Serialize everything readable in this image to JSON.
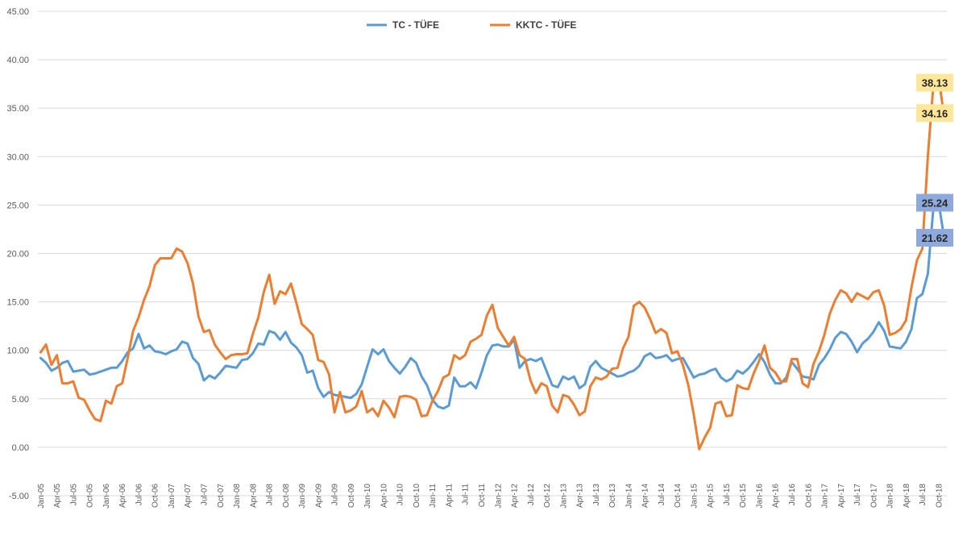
{
  "chart_data": {
    "type": "line",
    "title": "",
    "xlabel": "",
    "ylabel": "",
    "ylim": [
      -5,
      45
    ],
    "y_ticks": [
      "-5.00",
      "0.00",
      "5.00",
      "10.00",
      "15.00",
      "20.00",
      "25.00",
      "30.00",
      "35.00",
      "40.00",
      "45.00"
    ],
    "grid": "horizontal",
    "legend_position": "top",
    "x_tick_labels": [
      "Jan-05",
      "Apr-05",
      "Jul-05",
      "Oct-05",
      "Jan-06",
      "Apr-06",
      "Jul-06",
      "Oct-06",
      "Jan-07",
      "Apr-07",
      "Jul-07",
      "Oct-07",
      "Jan-08",
      "Apr-08",
      "Jul-08",
      "Oct-08",
      "Jan-09",
      "Apr-09",
      "Jul-09",
      "Oct-09",
      "Jan-10",
      "Apr-10",
      "Jul-10",
      "Oct-10",
      "Jan-11",
      "Apr-11",
      "Jul-11",
      "Oct-11",
      "Jan-12",
      "Apr-12",
      "Jul-12",
      "Oct-12",
      "Jan-13",
      "Apr-13",
      "Jul-13",
      "Oct-13",
      "Jan-14",
      "Apr-14",
      "Jul-14",
      "Oct-14",
      "Jan-15",
      "Apr-15",
      "Jul-15",
      "Oct-15",
      "Jan-16",
      "Apr-16",
      "Jul-16",
      "Oct-16",
      "Jan-17",
      "Apr-17",
      "Jul-17",
      "Oct-17",
      "Jan-18",
      "Apr-18",
      "Jul-18",
      "Oct-18"
    ],
    "series": [
      {
        "name": "TC - TÜFE",
        "color": "#5B9BD5",
        "values": [
          9.2,
          8.7,
          7.9,
          8.2,
          8.7,
          8.9,
          7.8,
          7.9,
          8.0,
          7.5,
          7.6,
          7.8,
          8.0,
          8.2,
          8.2,
          8.9,
          9.8,
          10.2,
          11.7,
          10.2,
          10.5,
          9.9,
          9.8,
          9.6,
          9.9,
          10.1,
          10.9,
          10.7,
          9.2,
          8.6,
          6.9,
          7.4,
          7.1,
          7.7,
          8.4,
          8.3,
          8.2,
          9.0,
          9.1,
          9.7,
          10.7,
          10.6,
          12.0,
          11.8,
          11.1,
          11.9,
          10.8,
          10.3,
          9.5,
          7.7,
          7.9,
          6.1,
          5.2,
          5.7,
          5.4,
          5.3,
          5.2,
          5.1,
          5.5,
          6.5,
          8.3,
          10.1,
          9.6,
          10.1,
          8.9,
          8.2,
          7.6,
          8.3,
          9.2,
          8.7,
          7.3,
          6.4,
          4.9,
          4.2,
          4.0,
          4.3,
          7.2,
          6.3,
          6.3,
          6.7,
          6.1,
          7.7,
          9.5,
          10.5,
          10.6,
          10.4,
          10.4,
          11.1,
          8.2,
          8.9,
          9.1,
          8.9,
          9.2,
          7.8,
          6.4,
          6.2,
          7.3,
          7.0,
          7.3,
          6.1,
          6.5,
          8.3,
          8.9,
          8.2,
          7.9,
          7.6,
          7.3,
          7.4,
          7.7,
          7.9,
          8.4,
          9.4,
          9.7,
          9.2,
          9.3,
          9.5,
          8.9,
          9.1,
          9.2,
          8.2,
          7.2,
          7.5,
          7.6,
          7.9,
          8.1,
          7.2,
          6.8,
          7.1,
          7.9,
          7.6,
          8.1,
          8.8,
          9.6,
          8.8,
          7.5,
          6.6,
          6.6,
          7.2,
          8.8,
          8.1,
          7.3,
          7.2,
          7.0,
          8.5,
          9.2,
          10.1,
          11.3,
          11.9,
          11.7,
          10.9,
          9.8,
          10.7,
          11.2,
          11.9,
          12.9,
          12.0,
          10.4,
          10.3,
          10.2,
          10.9,
          12.2,
          15.4,
          15.8,
          17.9,
          24.5,
          25.24,
          21.62
        ]
      },
      {
        "name": "KKTC - TÜFE",
        "color": "#ED7D31",
        "values": [
          9.8,
          10.6,
          8.5,
          9.5,
          6.6,
          6.6,
          6.8,
          5.1,
          4.9,
          3.8,
          2.9,
          2.7,
          4.8,
          4.5,
          6.3,
          6.6,
          9.2,
          12.0,
          13.4,
          15.2,
          16.6,
          18.8,
          19.5,
          19.5,
          19.5,
          20.5,
          20.2,
          19.0,
          16.9,
          13.5,
          11.9,
          12.1,
          10.6,
          9.8,
          9.1,
          9.5,
          9.6,
          9.6,
          9.7,
          11.7,
          13.4,
          16.0,
          17.8,
          14.8,
          16.1,
          15.8,
          16.9,
          14.9,
          12.7,
          12.2,
          11.6,
          9.0,
          8.8,
          7.5,
          3.6,
          5.7,
          3.6,
          3.8,
          4.2,
          5.8,
          3.6,
          4.0,
          3.2,
          4.8,
          4.1,
          3.1,
          5.2,
          5.3,
          5.2,
          4.9,
          3.2,
          3.3,
          4.8,
          5.8,
          7.2,
          7.5,
          9.5,
          9.1,
          9.5,
          10.9,
          11.2,
          11.6,
          13.6,
          14.7,
          12.3,
          11.4,
          10.5,
          11.4,
          9.5,
          9.1,
          6.9,
          5.6,
          6.6,
          6.3,
          4.3,
          3.6,
          5.4,
          5.2,
          4.4,
          3.3,
          3.7,
          6.3,
          7.2,
          7.0,
          7.3,
          8.1,
          8.2,
          10.2,
          11.4,
          14.6,
          15.0,
          14.4,
          13.2,
          11.8,
          12.2,
          11.8,
          9.7,
          9.9,
          8.5,
          6.4,
          3.4,
          -0.2,
          1.0,
          2.0,
          4.5,
          4.7,
          3.2,
          3.3,
          6.4,
          6.1,
          6.0,
          7.6,
          8.9,
          10.5,
          8.2,
          7.7,
          6.8,
          6.8,
          9.1,
          9.1,
          6.6,
          6.2,
          8.6,
          9.9,
          11.6,
          13.8,
          15.2,
          16.2,
          15.9,
          15.0,
          15.9,
          15.6,
          15.3,
          16.0,
          16.2,
          14.6,
          11.6,
          11.8,
          12.2,
          13.1,
          16.5,
          19.3,
          20.5,
          30.0,
          37.2,
          38.13,
          34.16
        ]
      }
    ],
    "data_labels": [
      {
        "text": "38.13",
        "value": 38.13,
        "series": "KKTC - TÜFE",
        "bg": "#FFE699"
      },
      {
        "text": "34.16",
        "value": 34.16,
        "series": "KKTC - TÜFE",
        "bg": "#FFE699"
      },
      {
        "text": "25.24",
        "value": 25.24,
        "series": "TC - TÜFE",
        "bg": "#8EA9DB"
      },
      {
        "text": "21.62",
        "value": 21.62,
        "series": "TC - TÜFE",
        "bg": "#8EA9DB"
      }
    ]
  }
}
